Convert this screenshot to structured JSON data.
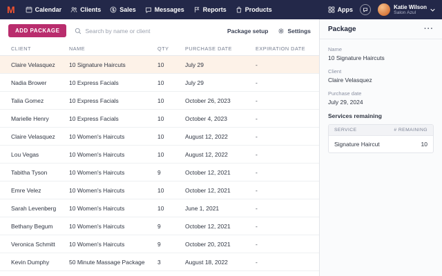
{
  "nav": {
    "items": [
      {
        "label": "Calendar",
        "icon": "calendar-icon"
      },
      {
        "label": "Clients",
        "icon": "clients-icon"
      },
      {
        "label": "Sales",
        "icon": "sales-icon"
      },
      {
        "label": "Messages",
        "icon": "messages-icon"
      },
      {
        "label": "Reports",
        "icon": "reports-icon"
      },
      {
        "label": "Products",
        "icon": "products-icon"
      }
    ],
    "apps_label": "Apps",
    "user": {
      "name": "Katie Wilson",
      "subtitle": "Salon Azul"
    }
  },
  "colors": {
    "nav_bg": "#232849",
    "accent": "#b92d6d",
    "selected_row": "#fdf2e8",
    "logo": "#f4532f"
  },
  "toolbar": {
    "add_button": "ADD PACKAGE",
    "search_placeholder": "Search by name or client",
    "package_setup": "Package setup",
    "settings": "Settings"
  },
  "table": {
    "columns": [
      "CLIENT",
      "NAME",
      "QTY",
      "PURCHASE DATE",
      "EXPIRATION DATE"
    ],
    "rows": [
      {
        "client": "Claire Velasquez",
        "name": "10 Signature Haircuts",
        "qty": "10",
        "purchase_date": "July 29",
        "expiration_date": "-",
        "selected": true
      },
      {
        "client": "Nadia Brower",
        "name": "10 Express Facials",
        "qty": "10",
        "purchase_date": "July 29",
        "expiration_date": "-",
        "selected": false
      },
      {
        "client": "Talia Gomez",
        "name": "10 Express Facials",
        "qty": "10",
        "purchase_date": "October 26, 2023",
        "expiration_date": "-",
        "selected": false
      },
      {
        "client": "Marielle Henry",
        "name": "10 Express Facials",
        "qty": "10",
        "purchase_date": "October 4, 2023",
        "expiration_date": "-",
        "selected": false
      },
      {
        "client": "Claire Velasquez",
        "name": "10 Women's Haircuts",
        "qty": "10",
        "purchase_date": "August 12, 2022",
        "expiration_date": "-",
        "selected": false
      },
      {
        "client": "Lou Vegas",
        "name": "10 Women's Haircuts",
        "qty": "10",
        "purchase_date": "August 12, 2022",
        "expiration_date": "-",
        "selected": false
      },
      {
        "client": "Tabitha Tyson",
        "name": "10 Women's Haircuts",
        "qty": "9",
        "purchase_date": "October 12, 2021",
        "expiration_date": "-",
        "selected": false
      },
      {
        "client": "Emre Velez",
        "name": "10 Women's Haircuts",
        "qty": "10",
        "purchase_date": "October 12, 2021",
        "expiration_date": "-",
        "selected": false
      },
      {
        "client": "Sarah Levenberg",
        "name": "10 Women's Haircuts",
        "qty": "10",
        "purchase_date": "June 1, 2021",
        "expiration_date": "-",
        "selected": false
      },
      {
        "client": "Bethany Begum",
        "name": "10 Women's Haircuts",
        "qty": "9",
        "purchase_date": "October 12, 2021",
        "expiration_date": "-",
        "selected": false
      },
      {
        "client": "Veronica Schmitt",
        "name": "10 Women's Haircuts",
        "qty": "9",
        "purchase_date": "October 20, 2021",
        "expiration_date": "-",
        "selected": false
      },
      {
        "client": "Kevin Dumphy",
        "name": "50 Minute Massage Package",
        "qty": "3",
        "purchase_date": "August 18, 2022",
        "expiration_date": "-",
        "selected": false
      }
    ]
  },
  "panel": {
    "title": "Package",
    "more_label": "···",
    "fields": [
      {
        "label": "Name",
        "value": "10 Signature Haircuts"
      },
      {
        "label": "Client",
        "value": "Claire Velasquez"
      },
      {
        "label": "Purchase date",
        "value": "July 29, 2024"
      }
    ],
    "services_header": "Services remaining",
    "service_columns": [
      "SERVICE",
      "# REMAINING"
    ],
    "services": [
      {
        "service": "Signature Haircut",
        "remaining": "10"
      }
    ]
  }
}
